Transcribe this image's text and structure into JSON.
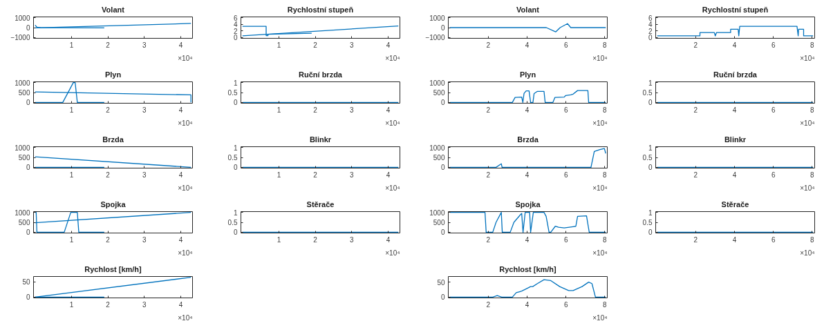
{
  "chart_data": [
    {
      "type": "line",
      "title": "Volant",
      "xlim": [
        0,
        4.28
      ],
      "ylim": [
        -1000,
        1000
      ],
      "xticks": [
        1,
        2,
        3,
        4
      ],
      "yticks": [
        -1000,
        0,
        1000
      ],
      "annotations": [
        "×10⁴"
      ],
      "series": [
        {
          "color": "#0072bd",
          "x": [
            0,
            4.28
          ],
          "values": [
            -30,
            420
          ]
        },
        {
          "color": "#0072bd",
          "x": [
            0,
            0.05,
            0.15,
            1.9
          ],
          "values": [
            250,
            50,
            0,
            -20
          ]
        }
      ]
    },
    {
      "type": "line",
      "title": "Rychlostní stupeň",
      "xlim": [
        0,
        4.28
      ],
      "ylim": [
        0,
        6
      ],
      "xticks": [
        1,
        2,
        3,
        4
      ],
      "yticks": [
        0,
        2,
        4,
        6
      ],
      "annotations": [
        "×10⁴"
      ],
      "series": [
        {
          "color": "#0072bd",
          "x": [
            0,
            0.65,
            0.65,
            0.7,
            0.7,
            1.9
          ],
          "values": [
            3.4,
            3.4,
            0.6,
            0.6,
            1,
            1.3
          ]
        },
        {
          "color": "#0072bd",
          "x": [
            0,
            4.28
          ],
          "values": [
            0.5,
            3.5
          ]
        }
      ]
    },
    {
      "type": "line",
      "title": "Volant",
      "xlim": [
        0.02,
        8.05
      ],
      "ylim": [
        -1000,
        1000
      ],
      "xticks": [
        2,
        4,
        6,
        8
      ],
      "yticks": [
        -1000,
        0,
        1000
      ],
      "annotations": [
        "×10⁴"
      ],
      "series": [
        {
          "color": "#0072bd",
          "x": [
            0.02,
            4.99,
            5.47,
            5.7,
            6.08,
            6.25,
            8.05
          ],
          "values": [
            0,
            0,
            -430,
            0,
            400,
            0,
            0
          ]
        }
      ]
    },
    {
      "type": "line",
      "title": "Rychlostní stupeň",
      "xlim": [
        0.02,
        8.05
      ],
      "ylim": [
        0,
        6
      ],
      "xticks": [
        2,
        4,
        6,
        8
      ],
      "yticks": [
        0,
        2,
        4,
        6
      ],
      "annotations": [
        "×10⁴"
      ],
      "series": [
        {
          "color": "#0072bd",
          "x": [
            0.02,
            2.22,
            2.22,
            2.96,
            3.01,
            3.07,
            3.8,
            3.8,
            4.19,
            4.22,
            4.27,
            7.22,
            7.28,
            7.3,
            7.56,
            7.56,
            8.05
          ],
          "values": [
            0.5,
            0.5,
            1.5,
            1.5,
            0.5,
            1.5,
            1.5,
            2.5,
            2.5,
            0.5,
            3.4,
            3.4,
            0.5,
            2.5,
            2.5,
            0.5,
            0.5
          ]
        }
      ]
    },
    {
      "type": "line",
      "title": "Plyn",
      "xlim": [
        0,
        4.28
      ],
      "ylim": [
        0,
        1000
      ],
      "xticks": [
        1,
        2,
        3,
        4
      ],
      "yticks": [
        0,
        500,
        1000
      ],
      "annotations": [
        "×10⁴"
      ],
      "series": [
        {
          "color": "#0072bd",
          "x": [
            0,
            4.28,
            4.28
          ],
          "values": [
            530,
            380,
            0
          ]
        },
        {
          "color": "#0072bd",
          "x": [
            0,
            0.76,
            1.05,
            1.1,
            1.16,
            1.9
          ],
          "values": [
            0,
            0,
            1000,
            1000,
            0,
            0
          ]
        }
      ]
    },
    {
      "type": "line",
      "title": "Ruční brzda",
      "xlim": [
        0,
        4.28
      ],
      "ylim": [
        0,
        1
      ],
      "xticks": [
        1,
        2,
        3,
        4
      ],
      "yticks": [
        0,
        0.5,
        1
      ],
      "annotations": [
        "×10⁴"
      ],
      "series": [
        {
          "color": "#0072bd",
          "x": [
            0,
            4.28
          ],
          "values": [
            0,
            0
          ]
        }
      ]
    },
    {
      "type": "line",
      "title": "Plyn",
      "xlim": [
        0.02,
        8.05
      ],
      "ylim": [
        0,
        1000
      ],
      "xticks": [
        2,
        4,
        6,
        8
      ],
      "yticks": [
        0,
        500,
        1000
      ],
      "annotations": [
        "×10⁴"
      ],
      "series": [
        {
          "color": "#0072bd",
          "x": [
            0.02,
            3.24,
            3.38,
            3.72,
            3.78,
            3.84,
            3.95,
            4.1,
            4.18,
            4.3,
            4.36,
            4.53,
            4.87,
            4.93,
            5.33,
            5.43,
            5.91,
            5.99,
            6.25,
            6.37,
            6.6,
            7.13,
            7.17,
            8.05
          ],
          "values": [
            0,
            0,
            250,
            270,
            0,
            450,
            580,
            580,
            0,
            0,
            450,
            560,
            560,
            0,
            0,
            250,
            270,
            350,
            380,
            420,
            600,
            600,
            0,
            0
          ]
        }
      ]
    },
    {
      "type": "line",
      "title": "Ruční brzda",
      "xlim": [
        0.02,
        8.05
      ],
      "ylim": [
        0,
        1
      ],
      "xticks": [
        2,
        4,
        6,
        8
      ],
      "yticks": [
        0,
        0.5,
        1
      ],
      "annotations": [
        "×10⁴"
      ],
      "series": [
        {
          "color": "#0072bd",
          "x": [
            0.02,
            8.05
          ],
          "values": [
            0,
            0
          ]
        }
      ]
    },
    {
      "type": "line",
      "title": "Brzda",
      "xlim": [
        0,
        4.28
      ],
      "ylim": [
        0,
        1000
      ],
      "xticks": [
        1,
        2,
        3,
        4
      ],
      "yticks": [
        0,
        500,
        1000
      ],
      "annotations": [
        "×10⁴"
      ],
      "series": [
        {
          "color": "#0072bd",
          "x": [
            0,
            1.9
          ],
          "values": [
            0,
            0
          ]
        },
        {
          "color": "#0072bd",
          "x": [
            0,
            4.28
          ],
          "values": [
            530,
            0
          ]
        }
      ]
    },
    {
      "type": "line",
      "title": "Blinkr",
      "xlim": [
        0,
        4.28
      ],
      "ylim": [
        0,
        1
      ],
      "xticks": [
        1,
        2,
        3,
        4
      ],
      "yticks": [
        0,
        0.5,
        1
      ],
      "annotations": [
        "×10⁴"
      ],
      "series": [
        {
          "color": "#0072bd",
          "x": [
            0,
            4.28
          ],
          "values": [
            0,
            0
          ]
        }
      ]
    },
    {
      "type": "line",
      "title": "Brzda",
      "xlim": [
        0.02,
        8.05
      ],
      "ylim": [
        0,
        1000
      ],
      "xticks": [
        2,
        4,
        6,
        8
      ],
      "yticks": [
        0,
        500,
        1000
      ],
      "annotations": [
        "×10⁴"
      ],
      "series": [
        {
          "color": "#0072bd",
          "x": [
            0.02,
            2.4,
            2.67,
            2.71,
            7.29,
            7.46,
            7.75,
            7.98,
            8.05
          ],
          "values": [
            0,
            0,
            180,
            0,
            0,
            800,
            900,
            950,
            700
          ]
        }
      ]
    },
    {
      "type": "line",
      "title": "Blinkr",
      "xlim": [
        0.02,
        8.05
      ],
      "ylim": [
        0,
        1
      ],
      "xticks": [
        2,
        4,
        6,
        8
      ],
      "yticks": [
        0,
        0.5,
        1
      ],
      "annotations": [
        "×10⁴"
      ],
      "series": [
        {
          "color": "#0072bd",
          "x": [
            0.02,
            8.05
          ],
          "values": [
            0,
            0
          ]
        }
      ]
    },
    {
      "type": "line",
      "title": "Spojka",
      "xlim": [
        0,
        4.28
      ],
      "ylim": [
        0,
        1000
      ],
      "xticks": [
        1,
        2,
        3,
        4
      ],
      "yticks": [
        0,
        500,
        1000
      ],
      "annotations": [
        "×10⁴"
      ],
      "series": [
        {
          "color": "#0072bd",
          "x": [
            0,
            4.28
          ],
          "values": [
            480,
            1000
          ]
        },
        {
          "color": "#0072bd",
          "x": [
            0,
            0.03,
            0.05,
            0.8,
            0.98,
            1.16,
            1.2,
            1.9
          ],
          "values": [
            1000,
            1000,
            0,
            0,
            1000,
            1000,
            0,
            0
          ]
        }
      ]
    },
    {
      "type": "line",
      "title": "Stěrače",
      "xlim": [
        0,
        4.28
      ],
      "ylim": [
        0,
        1
      ],
      "xticks": [
        1,
        2,
        3,
        4
      ],
      "yticks": [
        0,
        0.5,
        1
      ],
      "annotations": [
        "×10⁴"
      ],
      "series": [
        {
          "color": "#0072bd",
          "x": [
            0,
            4.28
          ],
          "values": [
            0,
            0
          ]
        }
      ]
    },
    {
      "type": "line",
      "title": "Spojka",
      "xlim": [
        0.02,
        8.05
      ],
      "ylim": [
        0,
        1000
      ],
      "xticks": [
        2,
        4,
        6,
        8
      ],
      "yticks": [
        0,
        500,
        1000
      ],
      "annotations": [
        "×10⁴"
      ],
      "series": [
        {
          "color": "#0072bd",
          "x": [
            0.02,
            1.83,
            1.89,
            2.23,
            2.4,
            2.67,
            2.72,
            3.13,
            3.32,
            3.67,
            3.72,
            3.79,
            3.9,
            4.13,
            4.18,
            4.32,
            4.87,
            4.98,
            5.13,
            5.22,
            5.45,
            5.62,
            5.91,
            6.37,
            6.51,
            6.6,
            7.06,
            7.2,
            8.05
          ],
          "values": [
            1000,
            1000,
            0,
            0,
            500,
            1000,
            0,
            0,
            500,
            900,
            950,
            0,
            1000,
            1000,
            0,
            1000,
            1000,
            800,
            0,
            0,
            300,
            250,
            220,
            280,
            300,
            800,
            830,
            0,
            0
          ]
        }
      ]
    },
    {
      "type": "line",
      "title": "Stěrače",
      "xlim": [
        0.02,
        8.05
      ],
      "ylim": [
        0,
        1
      ],
      "xticks": [
        2,
        4,
        6,
        8
      ],
      "yticks": [
        0,
        0.5,
        1
      ],
      "annotations": [
        "×10⁴"
      ],
      "series": [
        {
          "color": "#0072bd",
          "x": [
            0.02,
            8.05
          ],
          "values": [
            0,
            0
          ]
        }
      ]
    },
    {
      "type": "line",
      "title": "Rychlost [km/h]",
      "xlim": [
        0,
        4.28
      ],
      "ylim": [
        0,
        65
      ],
      "xticks": [
        1,
        2,
        3,
        4
      ],
      "yticks": [
        0,
        50
      ],
      "annotations": [
        "×10⁴"
      ],
      "series": [
        {
          "color": "#0072bd",
          "x": [
            0,
            1.9
          ],
          "values": [
            0,
            0
          ]
        },
        {
          "color": "#0072bd",
          "x": [
            0,
            4.28
          ],
          "values": [
            0,
            65
          ]
        }
      ]
    },
    {
      "type": "line",
      "title": "Rychlost [km/h]",
      "xlim": [
        0.02,
        8.05
      ],
      "ylim": [
        0,
        66
      ],
      "xticks": [
        2,
        4,
        6,
        8
      ],
      "yticks": [
        0,
        50
      ],
      "annotations": [
        "×10⁴"
      ],
      "series": [
        {
          "color": "#0072bd",
          "x": [
            0.02,
            2.23,
            2.46,
            2.69,
            3.24,
            3.44,
            3.61,
            3.72,
            4.18,
            4.29,
            4.53,
            4.87,
            5.22,
            5.68,
            6.14,
            6.37,
            6.83,
            7.17,
            7.34,
            7.52,
            8.05
          ],
          "values": [
            0,
            0,
            5,
            0,
            0,
            15,
            18,
            20,
            35,
            35,
            45,
            58,
            55,
            35,
            22,
            22,
            35,
            50,
            45,
            0,
            0
          ]
        }
      ]
    }
  ]
}
